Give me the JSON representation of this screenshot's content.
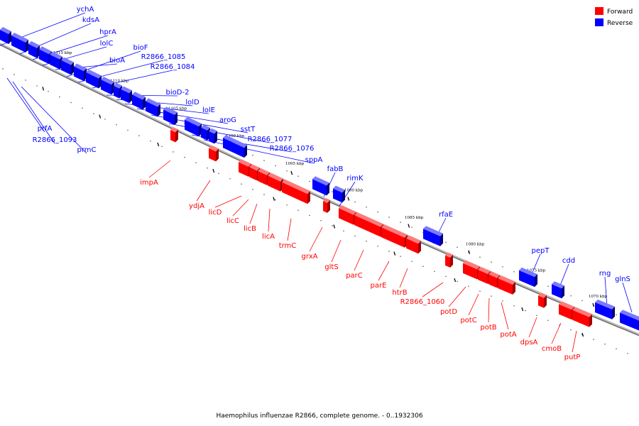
{
  "caption": "Haemophilus influenzae R2866, complete genome. - 0..1932306",
  "legend": {
    "forward": {
      "label": "Forward",
      "color": "#ff0000"
    },
    "reverse": {
      "label": "Reverse",
      "color": "#0000ff"
    }
  },
  "colors": {
    "forward": "#ff0000",
    "reverse": "#0000ff",
    "backbone": "#888888"
  },
  "tick_labels": [
    "1115 kbp",
    "1110 kbp",
    "1105 kbp",
    "1100 kbp",
    "1095 kbp",
    "1090 kbp",
    "1085 kbp",
    "1080 kbp",
    "1075 kbp",
    "1070 kbp"
  ],
  "genes": [
    {
      "name": "ychA",
      "strand": "reverse"
    },
    {
      "name": "kdsA",
      "strand": "reverse"
    },
    {
      "name": "hprA",
      "strand": "reverse"
    },
    {
      "name": "lolC",
      "strand": "reverse"
    },
    {
      "name": "bioA",
      "strand": "reverse"
    },
    {
      "name": "bioF",
      "strand": "reverse"
    },
    {
      "name": "R2866_1085",
      "strand": "reverse"
    },
    {
      "name": "R2866_1084",
      "strand": "reverse"
    },
    {
      "name": "bioD-2",
      "strand": "reverse"
    },
    {
      "name": "lolD",
      "strand": "reverse"
    },
    {
      "name": "lolE",
      "strand": "reverse"
    },
    {
      "name": "aroG",
      "strand": "reverse"
    },
    {
      "name": "sstT",
      "strand": "reverse"
    },
    {
      "name": "R2866_1077",
      "strand": "reverse"
    },
    {
      "name": "R2866_1076",
      "strand": "reverse"
    },
    {
      "name": "sppA",
      "strand": "reverse"
    },
    {
      "name": "prfA",
      "strand": "reverse"
    },
    {
      "name": "R2866_1093",
      "strand": "reverse"
    },
    {
      "name": "prmC",
      "strand": "reverse"
    },
    {
      "name": "fabB",
      "strand": "reverse"
    },
    {
      "name": "rimK",
      "strand": "reverse"
    },
    {
      "name": "rfaE",
      "strand": "reverse"
    },
    {
      "name": "pepT",
      "strand": "reverse"
    },
    {
      "name": "cdd",
      "strand": "reverse"
    },
    {
      "name": "rng",
      "strand": "reverse"
    },
    {
      "name": "glnS",
      "strand": "reverse"
    },
    {
      "name": "impA",
      "strand": "forward"
    },
    {
      "name": "ydjA",
      "strand": "forward"
    },
    {
      "name": "licD",
      "strand": "forward"
    },
    {
      "name": "licC",
      "strand": "forward"
    },
    {
      "name": "licB",
      "strand": "forward"
    },
    {
      "name": "licA",
      "strand": "forward"
    },
    {
      "name": "trmC",
      "strand": "forward"
    },
    {
      "name": "grxA",
      "strand": "forward"
    },
    {
      "name": "gltS",
      "strand": "forward"
    },
    {
      "name": "parC",
      "strand": "forward"
    },
    {
      "name": "parE",
      "strand": "forward"
    },
    {
      "name": "htrB",
      "strand": "forward"
    },
    {
      "name": "R2866_1060",
      "strand": "forward"
    },
    {
      "name": "potD",
      "strand": "forward"
    },
    {
      "name": "potC",
      "strand": "forward"
    },
    {
      "name": "potB",
      "strand": "forward"
    },
    {
      "name": "potA",
      "strand": "forward"
    },
    {
      "name": "dpsA",
      "strand": "forward"
    },
    {
      "name": "cmoB",
      "strand": "forward"
    },
    {
      "name": "putP",
      "strand": "forward"
    }
  ]
}
